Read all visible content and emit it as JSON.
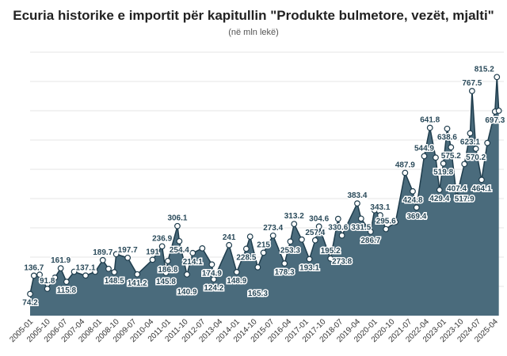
{
  "chart_data": {
    "type": "area",
    "title": "Ecuria historike e importit për kapitullin \"Produkte bulmetore, vezët, mjalti\"",
    "subtitle": "(në mln lekë)",
    "xlabel": "",
    "ylabel": "",
    "ylim": [
      0,
      900
    ],
    "grid": true,
    "color": "#4a6b7c",
    "x_ticks": [
      "2005-01",
      "2005-10",
      "2006-07",
      "2007-04",
      "2008-01",
      "2008-10",
      "2009-07",
      "2010-04",
      "2011-01",
      "2011-10",
      "2012-07",
      "2013-04",
      "2014-01",
      "2014-10",
      "2015-07",
      "2016-04",
      "2017-01",
      "2017-10",
      "2018-07",
      "2019-04",
      "2020-01",
      "2020-10",
      "2021-07",
      "2022-04",
      "2023-01",
      "2023-10",
      "2024-07",
      "2025-04"
    ],
    "points": [
      {
        "x": "2005-01",
        "y": 74.2,
        "label": "74.2"
      },
      {
        "x": "2005-03",
        "y": 136.7,
        "label": "136.7"
      },
      {
        "x": "2005-06",
        "y": 140
      },
      {
        "x": "2005-10",
        "y": 91.8,
        "label": "91.8"
      },
      {
        "x": "2006-02",
        "y": 130
      },
      {
        "x": "2006-05",
        "y": 161.9,
        "label": "161.9"
      },
      {
        "x": "2006-08",
        "y": 115.8,
        "label": "115.8"
      },
      {
        "x": "2006-12",
        "y": 150
      },
      {
        "x": "2007-06",
        "y": 137.1,
        "label": "137.1"
      },
      {
        "x": "2007-11",
        "y": 150
      },
      {
        "x": "2008-03",
        "y": 189.7,
        "label": "189.7"
      },
      {
        "x": "2008-06",
        "y": 160
      },
      {
        "x": "2008-09",
        "y": 148.5,
        "label": "148.5"
      },
      {
        "x": "2008-10",
        "y": 210
      },
      {
        "x": "2009-04",
        "y": 197.7,
        "label": "197.7"
      },
      {
        "x": "2009-09",
        "y": 141.2,
        "label": "141.2"
      },
      {
        "x": "2010-05",
        "y": 191,
        "label": "191"
      },
      {
        "x": "2010-10",
        "y": 236.9,
        "label": "236.9"
      },
      {
        "x": "2010-12",
        "y": 145.8,
        "label": "145.8"
      },
      {
        "x": "2011-01",
        "y": 186.8,
        "label": "186.8"
      },
      {
        "x": "2011-06",
        "y": 306.1,
        "label": "306.1"
      },
      {
        "x": "2011-07",
        "y": 254.4,
        "label": "254.4"
      },
      {
        "x": "2011-11",
        "y": 140.9,
        "label": "140.9"
      },
      {
        "x": "2012-02",
        "y": 214.1,
        "label": "214.1"
      },
      {
        "x": "2012-07",
        "y": 230
      },
      {
        "x": "2012-12",
        "y": 174.9,
        "label": "174.9"
      },
      {
        "x": "2013-01",
        "y": 124.2,
        "label": "124.2"
      },
      {
        "x": "2013-09",
        "y": 241,
        "label": "241"
      },
      {
        "x": "2014-01",
        "y": 148.9,
        "label": "148.9"
      },
      {
        "x": "2014-06",
        "y": 228.5,
        "label": "228.5"
      },
      {
        "x": "2014-08",
        "y": 270
      },
      {
        "x": "2014-12",
        "y": 165.3,
        "label": "165.3"
      },
      {
        "x": "2015-03",
        "y": 215,
        "label": "215"
      },
      {
        "x": "2015-08",
        "y": 273.4,
        "label": "273.4"
      },
      {
        "x": "2016-02",
        "y": 178.3,
        "label": "178.3"
      },
      {
        "x": "2016-05",
        "y": 253.3,
        "label": "253.3"
      },
      {
        "x": "2016-07",
        "y": 313.2,
        "label": "313.2"
      },
      {
        "x": "2016-11",
        "y": 260
      },
      {
        "x": "2017-03",
        "y": 193.1,
        "label": "193.1"
      },
      {
        "x": "2017-06",
        "y": 257.4,
        "label": "257.4"
      },
      {
        "x": "2017-08",
        "y": 304.6,
        "label": "304.6"
      },
      {
        "x": "2018-02",
        "y": 195.2,
        "label": "195.2"
      },
      {
        "x": "2018-06",
        "y": 330.6,
        "label": "330.6"
      },
      {
        "x": "2018-08",
        "y": 273.8,
        "label": "273.8"
      },
      {
        "x": "2019-04",
        "y": 383.4,
        "label": "383.4"
      },
      {
        "x": "2019-06",
        "y": 331.5,
        "label": "331.5"
      },
      {
        "x": "2019-11",
        "y": 286.7,
        "label": "286.7"
      },
      {
        "x": "2020-01",
        "y": 360
      },
      {
        "x": "2020-04",
        "y": 343.1,
        "label": "343.1"
      },
      {
        "x": "2020-07",
        "y": 295.6,
        "label": "295.6"
      },
      {
        "x": "2020-12",
        "y": 320
      },
      {
        "x": "2021-05",
        "y": 487.9,
        "label": "487.9"
      },
      {
        "x": "2021-09",
        "y": 424.8,
        "label": "424.8"
      },
      {
        "x": "2021-11",
        "y": 369.4,
        "label": "369.4"
      },
      {
        "x": "2022-03",
        "y": 544.9,
        "label": "544.9"
      },
      {
        "x": "2022-06",
        "y": 641.8,
        "label": "641.8"
      },
      {
        "x": "2022-09",
        "y": 540
      },
      {
        "x": "2022-11",
        "y": 429.4,
        "label": "429.4"
      },
      {
        "x": "2023-01",
        "y": 519.8,
        "label": "519.8"
      },
      {
        "x": "2023-03",
        "y": 638.6,
        "label": "638.6"
      },
      {
        "x": "2023-05",
        "y": 575.2,
        "label": "575.2"
      },
      {
        "x": "2023-08",
        "y": 407.4,
        "label": "407.4"
      },
      {
        "x": "2023-12",
        "y": 517.9,
        "label": "517.9"
      },
      {
        "x": "2024-03",
        "y": 623.1,
        "label": "623.1"
      },
      {
        "x": "2024-04",
        "y": 767.5,
        "label": "767.5"
      },
      {
        "x": "2024-06",
        "y": 570.2,
        "label": "570.2"
      },
      {
        "x": "2024-09",
        "y": 464.1,
        "label": "464.1"
      },
      {
        "x": "2024-12",
        "y": 590
      },
      {
        "x": "2025-04",
        "y": 697.3,
        "label": "697.3"
      },
      {
        "x": "2025-05",
        "y": 815.2,
        "label": "815.2"
      },
      {
        "x": "2025-06",
        "y": 700
      }
    ]
  }
}
